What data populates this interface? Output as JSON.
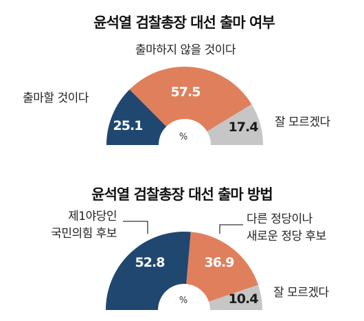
{
  "colors": {
    "navy": "#1f4770",
    "orange": "#e07f5c",
    "gray": "#c6c6c6"
  },
  "unit": "%",
  "chart_data": [
    {
      "type": "pie",
      "title": "윤석열 검찰총장 대선 출마 여부",
      "categories": [
        "출마할 것이다",
        "출마하지 않을 것이다",
        "잘 모르겠다"
      ],
      "values": [
        25.1,
        57.5,
        17.4
      ],
      "value_labels": [
        "25.1",
        "57.5",
        "17.4"
      ],
      "colors": [
        "#1f4770",
        "#e07f5c",
        "#c6c6c6"
      ],
      "style": "half-donut"
    },
    {
      "type": "pie",
      "title": "윤석열 검찰총장 대선 출마 방법",
      "categories": [
        "제1야당인 국민의힘 후보",
        "다른 정당이나 새로운 정당 후보",
        "잘 모르겠다"
      ],
      "category_lines": [
        [
          "제1야당인",
          "국민의힘 후보"
        ],
        [
          "다른 정당이나",
          "새로운 정당 후보"
        ],
        [
          "잘 모르겠다"
        ]
      ],
      "values": [
        52.8,
        36.9,
        10.4
      ],
      "value_labels": [
        "52.8",
        "36.9",
        "10.4"
      ],
      "colors": [
        "#1f4770",
        "#e07f5c",
        "#c6c6c6"
      ],
      "style": "half-donut"
    }
  ]
}
